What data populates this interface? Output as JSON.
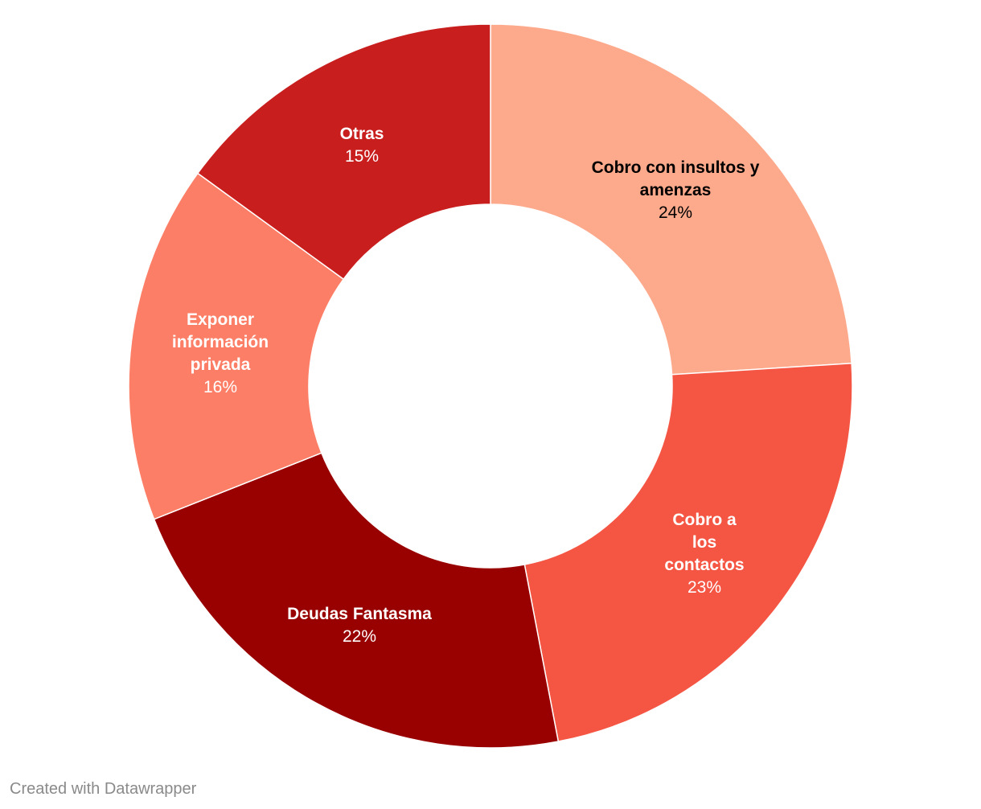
{
  "chart_data": {
    "type": "pie",
    "donut": true,
    "title": "",
    "slices": [
      {
        "label": "Cobro con insultos y amenzas",
        "lines": [
          "Cobro con insultos y",
          "amenzas"
        ],
        "value": 24,
        "value_label": "24%",
        "color": "#fda98b",
        "text_color": "#000000"
      },
      {
        "label": "Cobro a los contactos",
        "lines": [
          "Cobro a",
          "los",
          "contactos"
        ],
        "value": 23,
        "value_label": "23%",
        "color": "#f55543",
        "text_color": "#ffffff"
      },
      {
        "label": "Deudas Fantasma",
        "lines": [
          "Deudas Fantasma"
        ],
        "value": 22,
        "value_label": "22%",
        "color": "#990000",
        "text_color": "#ffffff"
      },
      {
        "label": "Exponer información privada",
        "lines": [
          "Exponer",
          "información",
          "privada"
        ],
        "value": 16,
        "value_label": "16%",
        "color": "#fd7e66",
        "text_color": "#ffffff"
      },
      {
        "label": "Otras",
        "lines": [
          "Otras"
        ],
        "value": 15,
        "value_label": "15%",
        "color": "#c81e1e",
        "text_color": "#ffffff"
      }
    ]
  },
  "footer": {
    "credit": "Created with Datawrapper"
  }
}
